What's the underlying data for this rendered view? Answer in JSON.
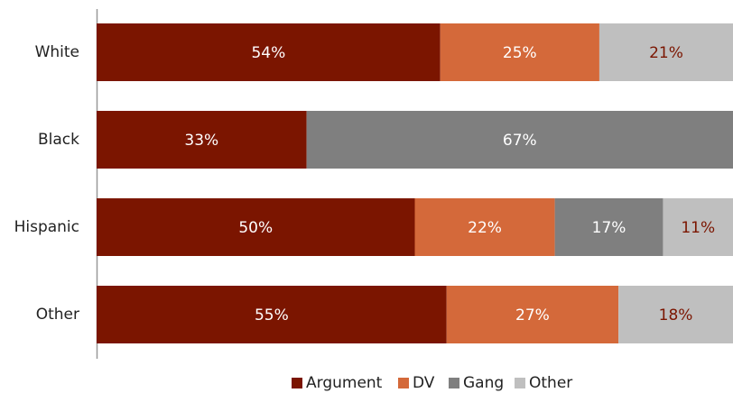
{
  "chart_data": {
    "type": "bar",
    "orientation": "horizontal",
    "stacked": true,
    "categories": [
      "White",
      "Black",
      "Hispanic",
      "Other"
    ],
    "xlim": [
      0,
      100
    ],
    "legend": "bottom",
    "series": [
      {
        "name": "Argument",
        "color": "#7b1500",
        "values": [
          54,
          33,
          50,
          55
        ],
        "value_labels": [
          "54%",
          "33%",
          "50%",
          "55%"
        ]
      },
      {
        "name": "DV",
        "color": "#d4693a",
        "values": [
          25,
          null,
          22,
          27
        ],
        "value_labels": [
          "25%",
          null,
          "22%",
          "27%"
        ]
      },
      {
        "name": "Gang",
        "color": "#7f7f7f",
        "values": [
          null,
          67,
          17,
          null
        ],
        "value_labels": [
          null,
          "67%",
          "17%",
          null
        ]
      },
      {
        "name": "Other",
        "color": "#bfbfbf",
        "values": [
          21,
          null,
          11,
          18
        ],
        "value_labels": [
          "21%",
          null,
          "11%",
          "18%"
        ]
      }
    ]
  }
}
